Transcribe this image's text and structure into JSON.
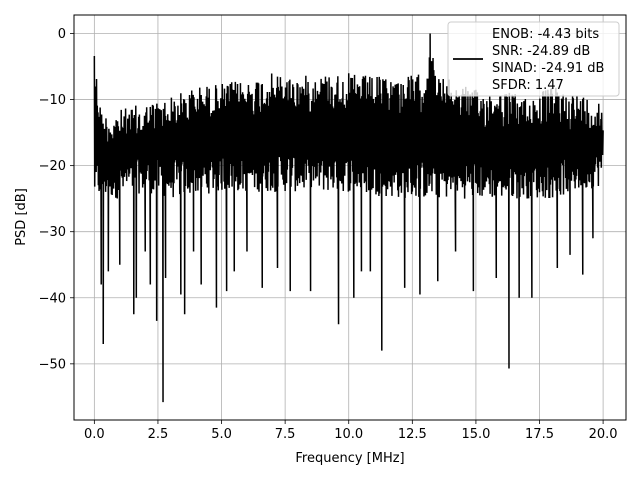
{
  "chart_data": {
    "type": "line",
    "xlabel": "Frequency [MHz]",
    "ylabel": "PSD [dB]",
    "xlim": [
      -0.8,
      20.9
    ],
    "ylim": [
      -58.5,
      2.8
    ],
    "grid": true,
    "legend_position": "top-right",
    "x_ticks": [
      0.0,
      2.5,
      5.0,
      7.5,
      10.0,
      12.5,
      15.0,
      17.5,
      20.0
    ],
    "x_tick_labels": [
      "0.0",
      "2.5",
      "5.0",
      "7.5",
      "10.0",
      "12.5",
      "15.0",
      "17.5",
      "20.0"
    ],
    "y_ticks": [
      0,
      -10,
      -20,
      -30,
      -40,
      -50
    ],
    "y_tick_labels": [
      "0",
      "−10",
      "−20",
      "−30",
      "−40",
      "−50"
    ],
    "legend": {
      "line_color": "#000000",
      "entries": [
        "ENOB: -4.43 bits",
        "SNR: -24.89 dB",
        "SINAD: -24.91 dB",
        "SFDR: 1.47"
      ]
    },
    "series": [
      {
        "color": "#000000",
        "x_range": [
          0.0,
          20.0
        ],
        "upper_envelope": [
          [
            0.0,
            -3.4
          ],
          [
            0.3,
            -12.0
          ],
          [
            1.0,
            -11.5
          ],
          [
            2.0,
            -10.5
          ],
          [
            3.0,
            -9.5
          ],
          [
            4.0,
            -8.0
          ],
          [
            5.0,
            -7.5
          ],
          [
            6.0,
            -7.0
          ],
          [
            7.0,
            -6.0
          ],
          [
            8.0,
            -6.5
          ],
          [
            9.0,
            -6.0
          ],
          [
            10.0,
            -6.0
          ],
          [
            11.0,
            -6.5
          ],
          [
            12.0,
            -6.5
          ],
          [
            13.0,
            -6.0
          ],
          [
            13.2,
            0.0
          ],
          [
            13.4,
            -6.0
          ],
          [
            14.0,
            -7.0
          ],
          [
            15.0,
            -8.5
          ],
          [
            16.0,
            -8.5
          ],
          [
            17.0,
            -9.5
          ],
          [
            18.0,
            -8.0
          ],
          [
            19.0,
            -9.0
          ],
          [
            20.0,
            -10.0
          ]
        ],
        "lower_band": [
          [
            0.0,
            -25.0
          ],
          [
            1.0,
            -25.0
          ],
          [
            2.0,
            -24.0
          ],
          [
            3.0,
            -25.0
          ],
          [
            5.0,
            -24.0
          ],
          [
            7.0,
            -24.0
          ],
          [
            10.0,
            -24.0
          ],
          [
            12.0,
            -25.0
          ],
          [
            15.0,
            -25.0
          ],
          [
            18.0,
            -25.0
          ],
          [
            20.0,
            -23.0
          ]
        ],
        "deep_dips": [
          [
            0.27,
            -38.0
          ],
          [
            0.35,
            -47.0
          ],
          [
            0.55,
            -36.0
          ],
          [
            1.0,
            -35.0
          ],
          [
            1.55,
            -42.5
          ],
          [
            1.65,
            -40.0
          ],
          [
            2.0,
            -33.0
          ],
          [
            2.2,
            -38.0
          ],
          [
            2.45,
            -43.5
          ],
          [
            2.7,
            -55.8
          ],
          [
            2.8,
            -37.0
          ],
          [
            3.4,
            -39.5
          ],
          [
            3.55,
            -42.5
          ],
          [
            3.9,
            -33.0
          ],
          [
            4.2,
            -38.0
          ],
          [
            4.8,
            -41.5
          ],
          [
            5.2,
            -39.0
          ],
          [
            5.5,
            -36.0
          ],
          [
            6.0,
            -33.0
          ],
          [
            6.6,
            -38.5
          ],
          [
            7.2,
            -35.5
          ],
          [
            7.7,
            -39.0
          ],
          [
            8.5,
            -39.0
          ],
          [
            9.6,
            -44.0
          ],
          [
            10.2,
            -40.0
          ],
          [
            10.5,
            -36.0
          ],
          [
            10.85,
            -36.0
          ],
          [
            11.3,
            -48.0
          ],
          [
            12.2,
            -38.5
          ],
          [
            12.8,
            -39.5
          ],
          [
            13.5,
            -37.5
          ],
          [
            14.2,
            -33.0
          ],
          [
            14.9,
            -39.0
          ],
          [
            15.8,
            -37.0
          ],
          [
            16.3,
            -50.7
          ],
          [
            16.7,
            -40.0
          ],
          [
            17.2,
            -40.0
          ],
          [
            18.2,
            -35.5
          ],
          [
            18.7,
            -33.5
          ],
          [
            19.2,
            -36.5
          ],
          [
            19.6,
            -31.0
          ]
        ]
      }
    ]
  }
}
